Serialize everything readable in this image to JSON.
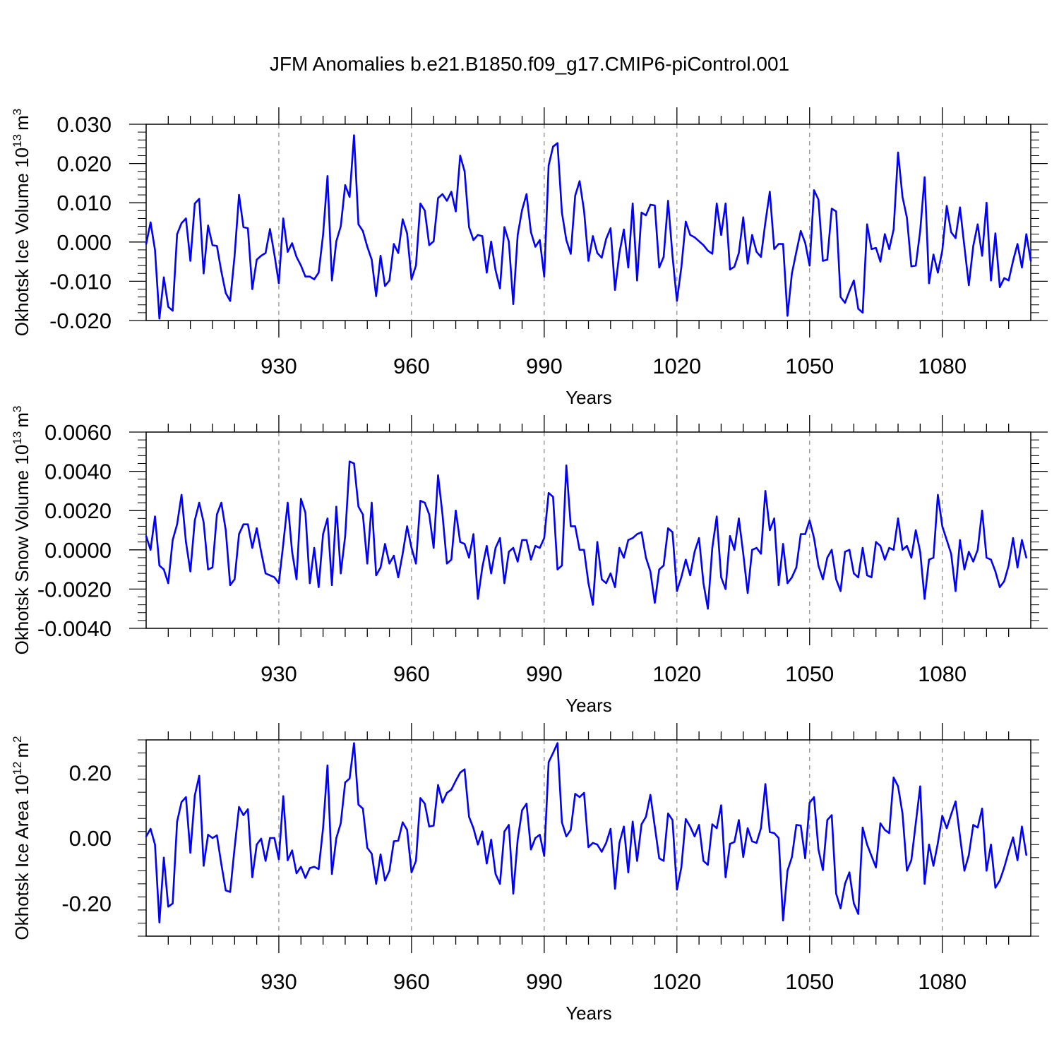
{
  "title": "JFM Anomalies b.e21.B1850.f09_g17.CMIP6-piControl.001",
  "colors": {
    "line": "#0000ff",
    "axis": "#000000",
    "grid": "#888888"
  },
  "chart_data": [
    {
      "type": "line",
      "name": "ice-volume",
      "ylabel": {
        "text": "Okhotsk Ice Volume 10",
        "exp": "13",
        "unit": "m",
        "unitexp": "3"
      },
      "xlabel": "Years",
      "xlim": [
        900,
        1100
      ],
      "ylim": [
        -0.02,
        0.03
      ],
      "yticks": [
        -0.02,
        -0.01,
        0.0,
        0.01,
        0.02,
        0.03
      ],
      "yticklabels": [
        "-0.020",
        "-0.010",
        "0.000",
        "0.010",
        "0.020",
        "0.030"
      ],
      "xticks": [
        930,
        960,
        990,
        1020,
        1050,
        1080
      ],
      "xticklabels": [
        "930",
        "960",
        "990",
        "1020",
        "1050",
        "1080"
      ],
      "x_start": 900,
      "values": [
        -0.0005,
        0.005,
        -0.002,
        -0.0195,
        -0.009,
        -0.0165,
        -0.0175,
        0.002,
        0.0048,
        0.006,
        -0.0048,
        0.0098,
        0.011,
        -0.008,
        0.0042,
        -0.0008,
        -0.001,
        -0.0075,
        -0.013,
        -0.015,
        -0.0035,
        0.012,
        0.0038,
        0.0035,
        -0.012,
        -0.0045,
        -0.0035,
        -0.0028,
        0.0033,
        -0.0032,
        -0.0105,
        0.006,
        -0.0025,
        -0.0003,
        -0.0038,
        -0.006,
        -0.0088,
        -0.0088,
        -0.0095,
        -0.0078,
        0.0018,
        0.0168,
        -0.0098,
        0.0002,
        0.004,
        0.0145,
        0.0115,
        0.0272,
        0.0045,
        0.0028,
        -0.0012,
        -0.0045,
        -0.0138,
        -0.0035,
        -0.0112,
        -0.0098,
        -0.0005,
        -0.0028,
        0.0058,
        0.0022,
        -0.0095,
        -0.006,
        0.0098,
        0.008,
        -0.0008,
        0.0002,
        0.0112,
        0.0122,
        0.0105,
        0.0128,
        0.0078,
        0.022,
        0.018,
        0.0038,
        0.0005,
        0.0018,
        0.0015,
        -0.0078,
        0.0001,
        -0.0072,
        -0.0118,
        0.0038,
        0.0001,
        -0.0158,
        0.0018,
        0.0082,
        0.0122,
        0.0025,
        -0.0012,
        0.0005,
        -0.0088,
        0.0195,
        0.0243,
        0.0252,
        0.0075,
        0.0005,
        -0.003,
        0.0118,
        0.0155,
        0.008,
        -0.0048,
        0.0015,
        -0.0028,
        -0.004,
        0.0008,
        0.0035,
        -0.0122,
        -0.0028,
        0.0032,
        -0.0065,
        0.0098,
        -0.0098,
        0.0075,
        0.0068,
        0.0095,
        0.0093,
        -0.0065,
        -0.0038,
        0.0105,
        -0.0035,
        -0.015,
        -0.0065,
        0.0052,
        0.0018,
        0.0012,
        0.0002,
        -0.0008,
        -0.0022,
        -0.003,
        0.0098,
        0.0018,
        0.0098,
        -0.007,
        -0.0063,
        -0.0028,
        0.0063,
        -0.0055,
        0.0018,
        -0.0025,
        -0.0038,
        0.005,
        0.0128,
        -0.0018,
        -0.0005,
        -0.0005,
        -0.0188,
        -0.008,
        -0.0025,
        0.0028,
        -0.0002,
        -0.006,
        0.0132,
        0.0108,
        -0.0048,
        -0.0045,
        0.0085,
        0.0078,
        -0.014,
        -0.0155,
        -0.0125,
        -0.0098,
        -0.017,
        -0.018,
        0.0045,
        -0.0018,
        -0.0015,
        -0.005,
        0.002,
        -0.0018,
        0.0032,
        0.0228,
        0.0115,
        0.0062,
        -0.0062,
        -0.006,
        0.0028,
        0.0165,
        -0.0105,
        -0.0032,
        -0.0078,
        -0.0022,
        0.0092,
        0.0025,
        0.001,
        0.0088,
        -0.0012,
        -0.011,
        -0.001,
        0.0045,
        -0.0035,
        0.01,
        -0.0098,
        0.0022,
        -0.0115,
        -0.0092,
        -0.0098,
        -0.0048,
        -0.0005,
        -0.0065,
        0.002,
        -0.0048
      ]
    },
    {
      "type": "line",
      "name": "snow-volume",
      "ylabel": {
        "text": "Okhotsk Snow Volume 10",
        "exp": "13",
        "unit": "m",
        "unitexp": "3"
      },
      "xlabel": "Years",
      "xlim": [
        900,
        1100
      ],
      "ylim": [
        -0.004,
        0.006
      ],
      "yticks": [
        -0.004,
        -0.002,
        0.0,
        0.002,
        0.004,
        0.006
      ],
      "yticklabels": [
        "-0.0040",
        "-0.0020",
        "0.0000",
        "0.0020",
        "0.0040",
        "0.0060"
      ],
      "xticks": [
        930,
        960,
        990,
        1020,
        1050,
        1080
      ],
      "xticklabels": [
        "930",
        "960",
        "990",
        "1020",
        "1050",
        "1080"
      ],
      "x_start": 900,
      "values": [
        0.0007,
        0.0,
        0.0017,
        -0.0008,
        -0.001,
        -0.0017,
        0.0005,
        0.0013,
        0.0028,
        0.0004,
        -0.0011,
        0.0015,
        0.0024,
        0.0014,
        -0.001,
        -0.0009,
        0.0018,
        0.0024,
        0.001,
        -0.0018,
        -0.0015,
        0.0008,
        0.0013,
        0.0013,
        0.0001,
        0.0011,
        -0.0001,
        -0.0012,
        -0.0013,
        -0.0014,
        -0.0017,
        0.0003,
        0.0024,
        -0.0001,
        -0.0015,
        0.0026,
        0.0019,
        -0.0017,
        0.0001,
        -0.0019,
        0.0008,
        0.0016,
        -0.0018,
        0.0022,
        -0.0012,
        0.0007,
        0.0045,
        0.0044,
        0.0022,
        0.0018,
        -0.0007,
        0.0024,
        -0.0013,
        -0.0009,
        0.0003,
        -0.0007,
        -0.0003,
        -0.0014,
        -0.0002,
        0.0012,
        0.0001,
        -0.0007,
        0.0025,
        0.0024,
        0.0018,
        0.0001,
        0.0038,
        0.0018,
        -0.0007,
        -0.0005,
        0.002,
        0.0004,
        0.0003,
        -0.0004,
        0.0008,
        -0.0025,
        -0.0009,
        0.0002,
        -0.0012,
        0.0001,
        0.0006,
        -0.0017,
        -0.0001,
        0.0001,
        -0.0006,
        0.0005,
        0.0005,
        -0.0005,
        0.0002,
        0.0001,
        0.0006,
        0.0029,
        0.0027,
        -0.001,
        -0.0008,
        0.0043,
        0.0012,
        0.0012,
        0.0,
        0.0,
        -0.0017,
        -0.0028,
        0.0004,
        -0.0015,
        -0.0017,
        -0.0012,
        -0.0019,
        0.0001,
        -0.0004,
        0.0005,
        0.0006,
        0.0008,
        0.0009,
        -0.0004,
        -0.0011,
        -0.0027,
        -0.001,
        -0.0008,
        0.0011,
        0.0009,
        -0.0021,
        -0.0014,
        -0.0005,
        -0.0013,
        -0.0001,
        0.0006,
        -0.0017,
        -0.003,
        0.0001,
        0.0017,
        -0.0014,
        -0.002,
        0.0007,
        0.0,
        0.0016,
        -0.0002,
        -0.0022,
        0.0,
        0.0001,
        -0.0002,
        0.003,
        0.001,
        0.0016,
        -0.0018,
        0.0003,
        -0.0017,
        -0.0014,
        -0.0009,
        0.0008,
        0.0008,
        0.0015,
        0.0006,
        -0.0008,
        -0.0015,
        -0.0004,
        0.0,
        -0.0015,
        -0.0021,
        -0.0001,
        0.0,
        -0.0012,
        -0.0014,
        0.0001,
        -0.0013,
        -0.0014,
        0.0004,
        0.0002,
        -0.0005,
        0.0001,
        0.0,
        0.0016,
        0.0,
        0.0002,
        -0.0004,
        0.001,
        -0.0001,
        -0.0025,
        -0.0005,
        -0.0004,
        0.0028,
        0.0012,
        0.0005,
        -0.0002,
        -0.0021,
        0.0005,
        -0.001,
        -0.0001,
        -0.0006,
        0.0,
        0.002,
        -0.0004,
        -0.0005,
        -0.0011,
        -0.0019,
        -0.0016,
        -0.0008,
        0.0006,
        -0.0009,
        0.0005,
        -0.0004
      ]
    },
    {
      "type": "line",
      "name": "ice-area",
      "ylabel": {
        "text": "Okhotsk Ice Area 10",
        "exp": "12",
        "unit": "m",
        "unitexp": "2"
      },
      "xlabel": "Years",
      "xlim": [
        900,
        1100
      ],
      "ylim": [
        -0.3,
        0.3
      ],
      "yticks": [
        -0.2,
        0.0,
        0.2
      ],
      "yticklabels": [
        "-0.20",
        "0.00",
        "0.20"
      ],
      "xticks": [
        930,
        960,
        990,
        1020,
        1050,
        1080
      ],
      "xticklabels": [
        "930",
        "960",
        "990",
        "1020",
        "1050",
        "1080"
      ],
      "x_start": 900,
      "values": [
        0.005,
        0.028,
        -0.02,
        -0.258,
        -0.06,
        -0.21,
        -0.2,
        0.05,
        0.11,
        0.125,
        -0.045,
        0.13,
        0.19,
        -0.085,
        0.01,
        0.0,
        0.008,
        -0.08,
        -0.16,
        -0.165,
        -0.03,
        0.095,
        0.07,
        0.088,
        -0.12,
        -0.02,
        -0.002,
        -0.07,
        0.0,
        0.0,
        -0.065,
        0.128,
        -0.068,
        -0.038,
        -0.108,
        -0.088,
        -0.122,
        -0.092,
        -0.088,
        -0.095,
        0.03,
        0.222,
        -0.11,
        0.0,
        0.045,
        0.17,
        0.182,
        0.29,
        0.102,
        0.09,
        -0.03,
        -0.048,
        -0.14,
        -0.05,
        -0.13,
        -0.1,
        -0.01,
        -0.008,
        0.048,
        0.025,
        -0.105,
        -0.07,
        0.122,
        0.105,
        0.035,
        0.038,
        0.162,
        0.108,
        0.138,
        0.148,
        0.175,
        0.2,
        0.21,
        0.065,
        0.03,
        -0.02,
        0.02,
        -0.078,
        -0.005,
        -0.11,
        -0.14,
        0.02,
        0.04,
        -0.17,
        -0.005,
        0.085,
        0.105,
        -0.035,
        0.0,
        0.01,
        -0.055,
        0.232,
        0.26,
        0.29,
        0.048,
        0.005,
        0.025,
        0.135,
        0.125,
        0.138,
        -0.028,
        -0.015,
        -0.02,
        -0.042,
        -0.015,
        0.028,
        -0.155,
        -0.015,
        0.035,
        -0.105,
        0.05,
        -0.07,
        0.042,
        0.065,
        0.132,
        0.035,
        -0.062,
        -0.07,
        0.075,
        0.055,
        -0.158,
        -0.09,
        0.058,
        0.035,
        0.005,
        0.04,
        -0.07,
        -0.082,
        0.042,
        0.03,
        0.1,
        -0.12,
        -0.018,
        -0.012,
        0.055,
        -0.058,
        0.03,
        -0.01,
        -0.015,
        0.03,
        0.165,
        0.018,
        0.015,
        0.0,
        -0.252,
        -0.1,
        -0.058,
        0.04,
        0.038,
        -0.062,
        0.108,
        0.125,
        -0.035,
        -0.098,
        0.055,
        0.07,
        -0.17,
        -0.215,
        -0.14,
        -0.105,
        -0.2,
        -0.232,
        0.032,
        -0.02,
        -0.055,
        -0.09,
        0.045,
        0.025,
        0.015,
        0.185,
        0.158,
        0.075,
        -0.1,
        -0.068,
        0.045,
        0.158,
        -0.14,
        -0.02,
        -0.085,
        -0.015,
        0.068,
        0.03,
        0.072,
        0.112,
        0.005,
        -0.1,
        -0.052,
        0.04,
        0.032,
        0.09,
        -0.1,
        -0.02,
        -0.152,
        -0.13,
        -0.09,
        -0.042,
        0.002,
        -0.068,
        0.035,
        -0.052
      ]
    }
  ]
}
